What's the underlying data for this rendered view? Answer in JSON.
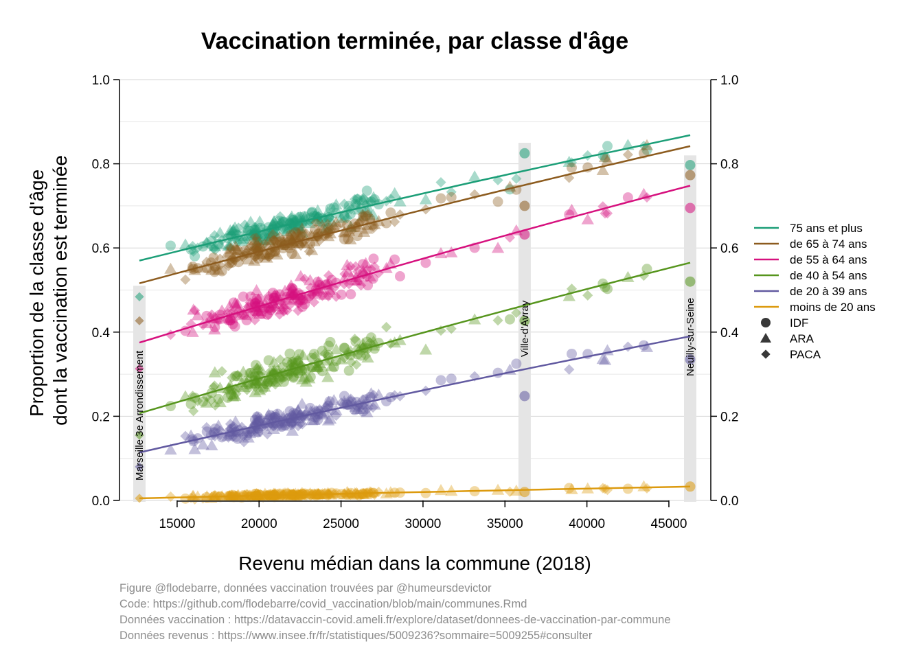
{
  "caption": [
    "Figure @flodebarre, données vaccination trouvées par @humeursdevictor",
    "Code: https://github.com/flodebarre/covid_vaccination/blob/main/communes.Rmd",
    "Données vaccination : https://datavaccin-covid.ameli.fr/explore/dataset/donnees-de-vaccination-par-commune",
    "Données revenus : https://www.insee.fr/fr/statistiques/5009236?sommaire=5009255#consulter"
  ],
  "chart_data": {
    "type": "scatter",
    "title": "Vaccination terminée, par classe d'âge",
    "xlabel": "Revenu médian dans la commune (2018)",
    "ylabel": [
      "Proportion de la classe d'âge",
      "dont la vaccination est terminée"
    ],
    "xlim": [
      11500,
      48000
    ],
    "ylim": [
      0,
      1
    ],
    "xticks": [
      15000,
      20000,
      25000,
      30000,
      35000,
      40000,
      45000
    ],
    "yticks": [
      0.0,
      0.2,
      0.4,
      0.6,
      0.8,
      1.0
    ],
    "ytick_labels": [
      "0.0",
      "0.2",
      "0.4",
      "0.6",
      "0.8",
      "1.0"
    ],
    "grid": "horizontal",
    "legend_position": "right",
    "series": [
      {
        "name": "75 ans et plus",
        "color": "#1b9e77",
        "fit": [
          [
            12700,
            0.57
          ],
          [
            46300,
            0.868
          ]
        ],
        "highlights": [
          [
            12700,
            0.484
          ],
          [
            36200,
            0.825
          ],
          [
            46300,
            0.797
          ]
        ]
      },
      {
        "name": "de 65 à 74 ans",
        "color": "#8c5b1e",
        "fit": [
          [
            12700,
            0.516
          ],
          [
            46300,
            0.842
          ]
        ],
        "highlights": [
          [
            12700,
            0.427
          ],
          [
            36200,
            0.7
          ],
          [
            46300,
            0.773
          ]
        ]
      },
      {
        "name": "de 55 à 64 ans",
        "color": "#d6117e",
        "fit": [
          [
            12700,
            0.375
          ],
          [
            46300,
            0.748
          ]
        ],
        "highlights": [
          [
            12700,
            0.313
          ],
          [
            36200,
            0.632
          ],
          [
            46300,
            0.695
          ]
        ]
      },
      {
        "name": "de 40 à 54 ans",
        "color": "#56951d",
        "fit": [
          [
            12700,
            0.207
          ],
          [
            46300,
            0.565
          ]
        ],
        "highlights": [
          [
            12700,
            0.155
          ],
          [
            36200,
            0.427
          ],
          [
            46300,
            0.52
          ]
        ]
      },
      {
        "name": "de 20 à 39 ans",
        "color": "#6159a0",
        "fit": [
          [
            12700,
            0.114
          ],
          [
            46300,
            0.39
          ]
        ],
        "highlights": [
          [
            12700,
            0.08
          ],
          [
            36200,
            0.248
          ],
          [
            46300,
            0.335
          ]
        ]
      },
      {
        "name": "moins de 20 ans",
        "color": "#dc9a0e",
        "fit": [
          [
            12700,
            0.005
          ],
          [
            46300,
            0.033
          ]
        ],
        "highlights": [
          [
            12700,
            0.005
          ],
          [
            36200,
            0.02
          ],
          [
            46300,
            0.033
          ]
        ]
      }
    ],
    "regions": [
      {
        "name": "IDF",
        "marker": "circle"
      },
      {
        "name": "ARA",
        "marker": "triangle"
      },
      {
        "name": "PACA",
        "marker": "diamond"
      }
    ],
    "highlighted_communes": [
      {
        "name": "Marseille 3e Arrondissement",
        "x": 12700
      },
      {
        "name": "Ville-d'Avray",
        "x": 36200
      },
      {
        "name": "Neuilly-sur-Seine",
        "x": 46300
      }
    ]
  }
}
